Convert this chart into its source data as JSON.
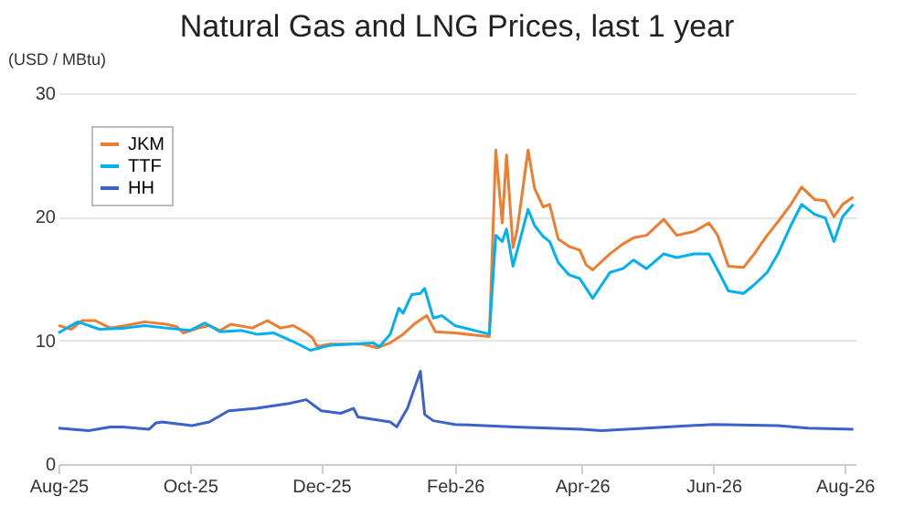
{
  "chart_data": {
    "type": "line",
    "title": "Natural Gas and LNG Prices, last 1 year",
    "ylabel": "(USD / MBtu)",
    "xlim": [
      "2025-08-01",
      "2026-08-06"
    ],
    "xticks": [
      {
        "value": "2025-08-01",
        "label": "Aug-25"
      },
      {
        "value": "2025-10-01",
        "label": "Oct-25"
      },
      {
        "value": "2025-12-01",
        "label": "Dec-25"
      },
      {
        "value": "2026-02-01",
        "label": "Feb-26"
      },
      {
        "value": "2026-04-01",
        "label": "Apr-26"
      },
      {
        "value": "2026-06-01",
        "label": "Jun-26"
      },
      {
        "value": "2026-08-01",
        "label": "Aug-26"
      }
    ],
    "ylim": [
      0,
      30
    ],
    "yticks": [
      0,
      10,
      20,
      30
    ],
    "grid": "y",
    "legend": "top left",
    "series": [
      {
        "name": "JKM",
        "color": "#ed7d31",
        "x": [
          "2025-08-01",
          "2025-08-07",
          "2025-08-12",
          "2025-08-18",
          "2025-08-25",
          "2025-09-01",
          "2025-09-10",
          "2025-09-20",
          "2025-09-25",
          "2025-09-28",
          "2025-10-05",
          "2025-10-10",
          "2025-10-15",
          "2025-10-20",
          "2025-10-30",
          "2025-11-06",
          "2025-11-12",
          "2025-11-18",
          "2025-11-24",
          "2025-11-27",
          "2025-11-29",
          "2025-12-05",
          "2025-12-20",
          "2025-12-27",
          "2026-01-02",
          "2026-01-08",
          "2026-01-13",
          "2026-01-19",
          "2026-01-23",
          "2026-02-01",
          "2026-02-17",
          "2026-02-20",
          "2026-02-23",
          "2026-02-25",
          "2026-02-28",
          "2026-03-02",
          "2026-03-07",
          "2026-03-10",
          "2026-03-14",
          "2026-03-17",
          "2026-03-21",
          "2026-03-26",
          "2026-03-31",
          "2026-04-03",
          "2026-04-06",
          "2026-04-14",
          "2026-04-20",
          "2026-04-25",
          "2026-05-01",
          "2026-05-09",
          "2026-05-15",
          "2026-05-23",
          "2026-05-30",
          "2026-06-03",
          "2026-06-08",
          "2026-06-15",
          "2026-06-20",
          "2026-06-26",
          "2026-07-01",
          "2026-07-07",
          "2026-07-12",
          "2026-07-18",
          "2026-07-23",
          "2026-07-27",
          "2026-07-31",
          "2026-08-05"
        ],
        "values": [
          11.2,
          10.9,
          11.6,
          11.6,
          11.0,
          11.2,
          11.5,
          11.3,
          11.1,
          10.6,
          11.0,
          11.2,
          10.8,
          11.3,
          11.0,
          11.6,
          11.0,
          11.2,
          10.6,
          10.2,
          9.5,
          9.7,
          9.7,
          9.4,
          9.8,
          10.5,
          11.3,
          12.0,
          10.7,
          10.6,
          10.3,
          25.4,
          19.5,
          25.0,
          17.5,
          19.0,
          25.4,
          22.3,
          20.8,
          21.0,
          18.2,
          17.6,
          17.3,
          16.1,
          15.7,
          17.0,
          17.8,
          18.3,
          18.5,
          19.8,
          18.5,
          18.8,
          19.5,
          18.5,
          16.0,
          15.9,
          17.0,
          18.5,
          19.6,
          21.0,
          22.4,
          21.4,
          21.3,
          20.0,
          21.0,
          21.6
        ]
      },
      {
        "name": "TTF",
        "color": "#00b0f0",
        "x": [
          "2025-08-01",
          "2025-08-10",
          "2025-08-20",
          "2025-09-01",
          "2025-09-10",
          "2025-09-20",
          "2025-10-01",
          "2025-10-08",
          "2025-10-15",
          "2025-10-25",
          "2025-11-01",
          "2025-11-09",
          "2025-11-18",
          "2025-11-26",
          "2025-12-05",
          "2025-12-15",
          "2025-12-25",
          "2025-12-28",
          "2026-01-02",
          "2026-01-06",
          "2026-01-08",
          "2026-01-12",
          "2026-01-16",
          "2026-01-18",
          "2026-01-22",
          "2026-01-26",
          "2026-02-01",
          "2026-02-17",
          "2026-02-20",
          "2026-02-23",
          "2026-02-25",
          "2026-02-28",
          "2026-03-02",
          "2026-03-07",
          "2026-03-10",
          "2026-03-14",
          "2026-03-17",
          "2026-03-21",
          "2026-03-26",
          "2026-03-31",
          "2026-04-03",
          "2026-04-06",
          "2026-04-14",
          "2026-04-20",
          "2026-04-25",
          "2026-05-01",
          "2026-05-09",
          "2026-05-15",
          "2026-05-23",
          "2026-05-30",
          "2026-06-03",
          "2026-06-08",
          "2026-06-15",
          "2026-06-20",
          "2026-06-26",
          "2026-07-01",
          "2026-07-07",
          "2026-07-12",
          "2026-07-18",
          "2026-07-23",
          "2026-07-27",
          "2026-07-31",
          "2026-08-05"
        ],
        "values": [
          10.6,
          11.5,
          10.9,
          11.0,
          11.2,
          11.0,
          10.8,
          11.4,
          10.7,
          10.8,
          10.5,
          10.6,
          9.9,
          9.2,
          9.6,
          9.7,
          9.8,
          9.5,
          10.5,
          12.6,
          12.2,
          13.7,
          13.8,
          14.2,
          11.8,
          12.0,
          11.2,
          10.5,
          18.5,
          18.0,
          19.0,
          16.0,
          17.3,
          20.6,
          19.3,
          18.4,
          18.0,
          16.3,
          15.3,
          15.0,
          14.2,
          13.4,
          15.5,
          15.8,
          16.5,
          15.8,
          17.0,
          16.7,
          17.0,
          17.0,
          15.7,
          14.0,
          13.8,
          14.5,
          15.5,
          17.0,
          19.3,
          21.0,
          20.2,
          19.9,
          18.0,
          20.0,
          21.0
        ]
      },
      {
        "name": "HH",
        "color": "#3a62c8",
        "x": [
          "2025-08-01",
          "2025-08-15",
          "2025-08-25",
          "2025-08-31",
          "2025-09-12",
          "2025-09-15",
          "2025-09-18",
          "2025-10-02",
          "2025-10-10",
          "2025-10-19",
          "2025-11-01",
          "2025-11-16",
          "2025-11-24",
          "2025-12-01",
          "2025-12-10",
          "2025-12-16",
          "2025-12-18",
          "2026-01-02",
          "2026-01-05",
          "2026-01-10",
          "2026-01-16",
          "2026-01-18",
          "2026-01-22",
          "2026-02-01",
          "2026-03-01",
          "2026-04-01",
          "2026-04-10",
          "2026-05-01",
          "2026-06-01",
          "2026-07-01",
          "2026-07-15",
          "2026-08-05"
        ],
        "values": [
          2.9,
          2.7,
          3.0,
          3.0,
          2.8,
          3.3,
          3.4,
          3.1,
          3.4,
          4.3,
          4.5,
          4.9,
          5.2,
          4.3,
          4.1,
          4.5,
          3.8,
          3.4,
          3.0,
          4.5,
          7.5,
          4.0,
          3.5,
          3.2,
          3.0,
          2.8,
          2.7,
          2.9,
          3.2,
          3.1,
          2.9,
          2.8
        ]
      }
    ]
  }
}
